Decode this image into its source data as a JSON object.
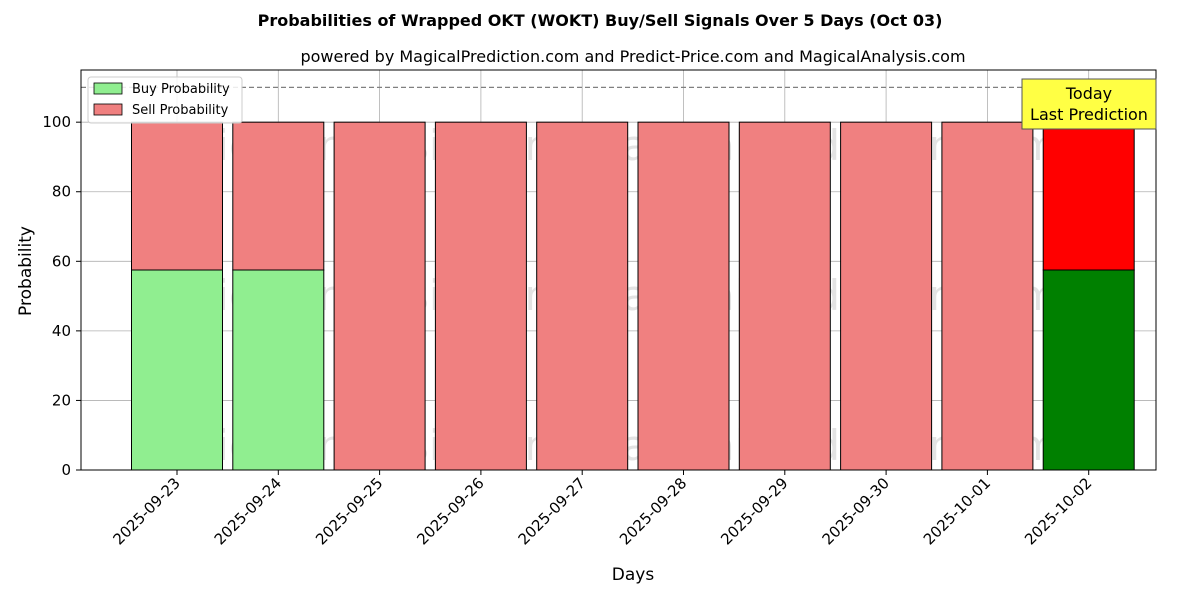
{
  "chart_data": {
    "type": "bar",
    "stacked": true,
    "title": "Probabilities of Wrapped OKT (WOKT) Buy/Sell Signals Over 5 Days (Oct 03)",
    "subtitle": "powered by MagicalPrediction.com and Predict-Price.com and MagicalAnalysis.com",
    "xlabel": "Days",
    "ylabel": "Probability",
    "ylim": [
      0,
      115
    ],
    "yticks": [
      0,
      20,
      40,
      60,
      80,
      100
    ],
    "grid": true,
    "legend_position": "top-left",
    "categories": [
      "2025-09-23",
      "2025-09-24",
      "2025-09-25",
      "2025-09-26",
      "2025-09-27",
      "2025-09-28",
      "2025-09-29",
      "2025-09-30",
      "2025-10-01",
      "2025-10-02"
    ],
    "series": [
      {
        "name": "Buy Probability",
        "values": [
          57.5,
          57.5,
          0,
          0,
          0,
          0,
          0,
          0,
          0,
          57.5
        ],
        "color": "#90ee90",
        "highlight_color": "#008000"
      },
      {
        "name": "Sell Probability",
        "values": [
          42.5,
          42.5,
          100,
          100,
          100,
          100,
          100,
          100,
          100,
          42.5
        ],
        "color": "#f08080",
        "highlight_color": "#ff0000"
      }
    ],
    "highlight_index": 9,
    "reference_line": {
      "y": 110,
      "style": "dashed",
      "color": "#808080"
    },
    "annotation": {
      "line1": "Today",
      "line2": "Last Prediction",
      "background": "#ffff44"
    },
    "watermarks": [
      "MagicalAnalysis.com",
      "MagicalPrediction.com"
    ]
  }
}
